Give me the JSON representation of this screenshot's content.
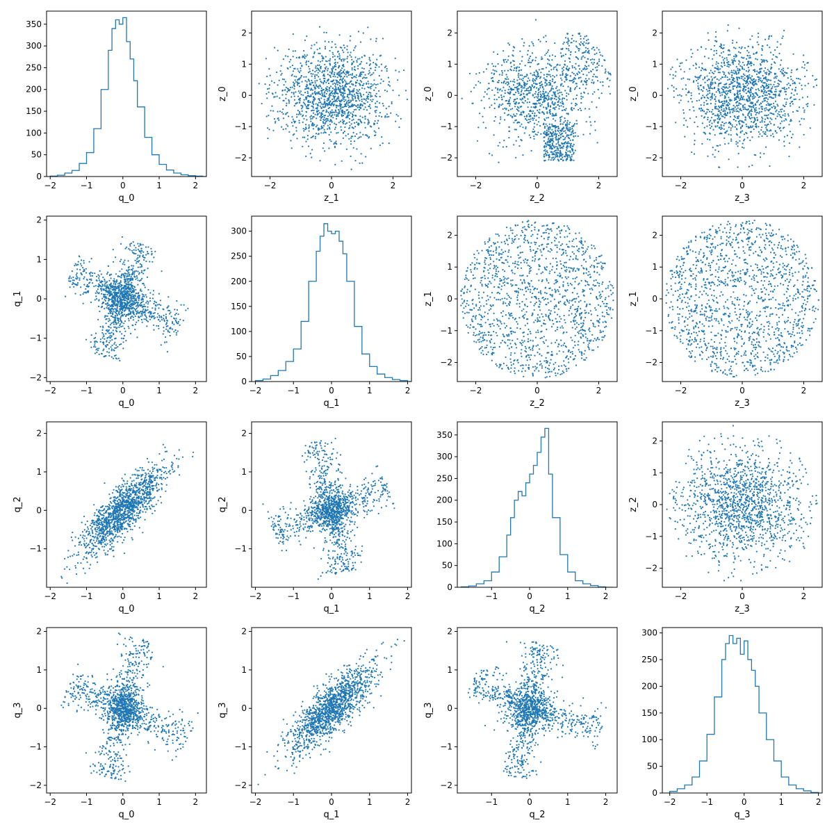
{
  "chart_data": {
    "type": "pairplot",
    "grid": false,
    "series_color": "#1f77b4",
    "panels": [
      {
        "row": 0,
        "col": 0,
        "type": "histogram",
        "xlabel": "q_0",
        "ylabel": "",
        "xlim": [
          -2.1,
          2.3
        ],
        "ylim": [
          0,
          380
        ],
        "xticks": [
          -2,
          -1,
          0,
          1,
          2
        ],
        "yticks": [
          0,
          50,
          100,
          150,
          200,
          250,
          300,
          350
        ],
        "bins": {
          "x": [
            -2.0,
            -1.8,
            -1.6,
            -1.4,
            -1.2,
            -1.0,
            -0.8,
            -0.6,
            -0.4,
            -0.3,
            -0.2,
            -0.1,
            0.0,
            0.1,
            0.2,
            0.3,
            0.4,
            0.6,
            0.8,
            1.0,
            1.2,
            1.4,
            1.6,
            1.8,
            2.0,
            2.2
          ],
          "y": [
            1,
            3,
            8,
            14,
            30,
            55,
            110,
            200,
            290,
            340,
            360,
            350,
            365,
            310,
            270,
            220,
            160,
            90,
            50,
            28,
            15,
            8,
            4,
            2,
            1,
            0
          ]
        }
      },
      {
        "row": 0,
        "col": 1,
        "type": "scatter",
        "xlabel": "z_1",
        "ylabel": "z_0",
        "xlim": [
          -2.6,
          2.6
        ],
        "ylim": [
          -2.6,
          2.7
        ],
        "xticks": [
          -2,
          0,
          2
        ],
        "yticks": [
          -2,
          -1,
          0,
          1,
          2
        ],
        "shape": "gaussian-disk",
        "params": {
          "spread": 0.95,
          "r": 2.5
        },
        "n": 1400
      },
      {
        "row": 0,
        "col": 2,
        "type": "scatter",
        "xlabel": "z_2",
        "ylabel": "z_0",
        "xlim": [
          -2.6,
          2.6
        ],
        "ylim": [
          -2.6,
          2.7
        ],
        "xticks": [
          -2,
          0,
          2
        ],
        "yticks": [
          -2,
          -1,
          0,
          1,
          2
        ],
        "shape": "tilted-blob",
        "params": {
          "spread": 0.9,
          "r": 2.5
        },
        "n": 1400
      },
      {
        "row": 0,
        "col": 3,
        "type": "scatter",
        "xlabel": "z_3",
        "ylabel": "z_0",
        "xlim": [
          -2.6,
          2.6
        ],
        "ylim": [
          -2.6,
          2.7
        ],
        "xticks": [
          -2,
          0,
          2
        ],
        "yticks": [
          -2,
          -1,
          0,
          1,
          2
        ],
        "shape": "gaussian-disk",
        "params": {
          "spread": 1.0,
          "r": 2.5
        },
        "n": 1400
      },
      {
        "row": 1,
        "col": 0,
        "type": "scatter",
        "xlabel": "q_0",
        "ylabel": "q_1",
        "xlim": [
          -2.1,
          2.3
        ],
        "ylim": [
          -2.1,
          2.1
        ],
        "xticks": [
          -2,
          -1,
          0,
          1,
          2
        ],
        "yticks": [
          -2,
          -1,
          0,
          1,
          2
        ],
        "shape": "cross",
        "params": {
          "arms": [
            [
              -1.4,
              0.7
            ],
            [
              0.5,
              1.4
            ],
            [
              1.6,
              -0.7
            ],
            [
              -0.5,
              -1.5
            ]
          ]
        },
        "n": 1400
      },
      {
        "row": 1,
        "col": 1,
        "type": "histogram",
        "xlabel": "q_1",
        "ylabel": "",
        "xlim": [
          -2.1,
          2.1
        ],
        "ylim": [
          0,
          330
        ],
        "xticks": [
          -2,
          -1,
          0,
          1,
          2
        ],
        "yticks": [
          0,
          50,
          100,
          150,
          200,
          250,
          300
        ],
        "bins": {
          "x": [
            -2.0,
            -1.8,
            -1.6,
            -1.4,
            -1.2,
            -1.0,
            -0.8,
            -0.6,
            -0.4,
            -0.3,
            -0.2,
            -0.1,
            0.0,
            0.1,
            0.2,
            0.3,
            0.4,
            0.6,
            0.8,
            1.0,
            1.2,
            1.4,
            1.6,
            1.8,
            2.0
          ],
          "y": [
            2,
            5,
            12,
            22,
            40,
            65,
            120,
            200,
            260,
            290,
            315,
            300,
            295,
            300,
            280,
            255,
            200,
            110,
            55,
            30,
            15,
            8,
            4,
            2,
            0
          ]
        }
      },
      {
        "row": 1,
        "col": 2,
        "type": "scatter",
        "xlabel": "z_2",
        "ylabel": "z_1",
        "xlim": [
          -2.6,
          2.6
        ],
        "ylim": [
          -2.6,
          2.6
        ],
        "xticks": [
          -2,
          0,
          2
        ],
        "yticks": [
          -2,
          -1,
          0,
          1,
          2
        ],
        "shape": "uniform-disk",
        "params": {
          "r": 2.5
        },
        "n": 1400
      },
      {
        "row": 1,
        "col": 3,
        "type": "scatter",
        "xlabel": "z_3",
        "ylabel": "z_1",
        "xlim": [
          -2.6,
          2.6
        ],
        "ylim": [
          -2.6,
          2.6
        ],
        "xticks": [
          -2,
          0,
          2
        ],
        "yticks": [
          -2,
          -1,
          0,
          1,
          2
        ],
        "shape": "uniform-disk",
        "params": {
          "r": 2.5
        },
        "n": 1400
      },
      {
        "row": 2,
        "col": 0,
        "type": "scatter",
        "xlabel": "q_0",
        "ylabel": "q_2",
        "xlim": [
          -2.1,
          2.3
        ],
        "ylim": [
          -2.0,
          2.3
        ],
        "xticks": [
          -2,
          -1,
          0,
          1,
          2
        ],
        "yticks": [
          -1,
          0,
          1,
          2
        ],
        "shape": "correlated",
        "params": {
          "rho": 0.8
        },
        "n": 1400
      },
      {
        "row": 2,
        "col": 1,
        "type": "scatter",
        "xlabel": "q_1",
        "ylabel": "q_2",
        "xlim": [
          -2.1,
          2.1
        ],
        "ylim": [
          -2.0,
          2.3
        ],
        "xticks": [
          -2,
          -1,
          0,
          1,
          2
        ],
        "yticks": [
          -1,
          0,
          1,
          2
        ],
        "shape": "cross",
        "params": {
          "arms": [
            [
              -1.5,
              -0.6
            ],
            [
              -0.4,
              1.8
            ],
            [
              1.5,
              0.6
            ],
            [
              0.4,
              -1.6
            ]
          ]
        },
        "n": 1400
      },
      {
        "row": 2,
        "col": 2,
        "type": "histogram",
        "xlabel": "q_2",
        "ylabel": "",
        "xlim": [
          -1.9,
          2.3
        ],
        "ylim": [
          0,
          380
        ],
        "xticks": [
          -1,
          0,
          1,
          2
        ],
        "yticks": [
          0,
          50,
          100,
          150,
          200,
          250,
          300,
          350
        ],
        "bins": {
          "x": [
            -1.8,
            -1.6,
            -1.4,
            -1.2,
            -1.0,
            -0.8,
            -0.6,
            -0.5,
            -0.4,
            -0.3,
            -0.2,
            -0.1,
            0.0,
            0.1,
            0.2,
            0.3,
            0.4,
            0.5,
            0.6,
            0.8,
            1.0,
            1.2,
            1.4,
            1.6,
            1.8,
            2.0
          ],
          "y": [
            1,
            3,
            8,
            15,
            35,
            70,
            120,
            160,
            200,
            220,
            210,
            240,
            260,
            280,
            310,
            345,
            365,
            260,
            160,
            75,
            35,
            15,
            8,
            4,
            1,
            0
          ]
        }
      },
      {
        "row": 2,
        "col": 3,
        "type": "scatter",
        "xlabel": "z_3",
        "ylabel": "z_2",
        "xlim": [
          -2.6,
          2.6
        ],
        "ylim": [
          -2.6,
          2.6
        ],
        "xticks": [
          -2,
          0,
          2
        ],
        "yticks": [
          -2,
          -1,
          0,
          1,
          2
        ],
        "shape": "gaussian-disk",
        "params": {
          "spread": 1.05,
          "r": 2.5
        },
        "n": 1400
      },
      {
        "row": 3,
        "col": 0,
        "type": "scatter",
        "xlabel": "q_0",
        "ylabel": "q_3",
        "xlim": [
          -2.1,
          2.3
        ],
        "ylim": [
          -2.2,
          2.1
        ],
        "xticks": [
          -2,
          -1,
          0,
          1,
          2
        ],
        "yticks": [
          -2,
          -1,
          0,
          1,
          2
        ],
        "shape": "cross",
        "params": {
          "arms": [
            [
              -1.5,
              0.6
            ],
            [
              0.5,
              1.8
            ],
            [
              1.8,
              -0.8
            ],
            [
              -0.4,
              -1.8
            ]
          ]
        },
        "n": 1400
      },
      {
        "row": 3,
        "col": 1,
        "type": "scatter",
        "xlabel": "q_1",
        "ylabel": "q_3",
        "xlim": [
          -2.1,
          2.1
        ],
        "ylim": [
          -2.2,
          2.1
        ],
        "xticks": [
          -2,
          -1,
          0,
          1,
          2
        ],
        "yticks": [
          -2,
          -1,
          0,
          1,
          2
        ],
        "shape": "correlated",
        "params": {
          "rho": 0.8
        },
        "n": 1400
      },
      {
        "row": 3,
        "col": 2,
        "type": "scatter",
        "xlabel": "q_2",
        "ylabel": "q_3",
        "xlim": [
          -1.9,
          2.3
        ],
        "ylim": [
          -2.2,
          2.1
        ],
        "xticks": [
          -1,
          0,
          1,
          2
        ],
        "yticks": [
          -2,
          -1,
          0,
          1,
          2
        ],
        "shape": "cross",
        "params": {
          "arms": [
            [
              -1.5,
              0.7
            ],
            [
              0.3,
              1.7
            ],
            [
              1.9,
              -0.5
            ],
            [
              -0.3,
              -1.8
            ]
          ]
        },
        "n": 1400
      },
      {
        "row": 3,
        "col": 3,
        "type": "histogram",
        "xlabel": "q_3",
        "ylabel": "",
        "xlim": [
          -2.2,
          2.1
        ],
        "ylim": [
          0,
          310
        ],
        "xticks": [
          -2,
          -1,
          0,
          1,
          2
        ],
        "yticks": [
          0,
          50,
          100,
          150,
          200,
          250,
          300
        ],
        "bins": {
          "x": [
            -2.0,
            -1.8,
            -1.6,
            -1.4,
            -1.2,
            -1.0,
            -0.8,
            -0.6,
            -0.5,
            -0.4,
            -0.3,
            -0.2,
            -0.1,
            0.0,
            0.1,
            0.2,
            0.3,
            0.4,
            0.6,
            0.8,
            1.0,
            1.2,
            1.4,
            1.6,
            1.8
          ],
          "y": [
            3,
            8,
            15,
            30,
            60,
            110,
            180,
            250,
            280,
            295,
            280,
            290,
            260,
            285,
            250,
            230,
            200,
            150,
            100,
            60,
            30,
            15,
            8,
            4,
            1
          ]
        }
      }
    ]
  }
}
